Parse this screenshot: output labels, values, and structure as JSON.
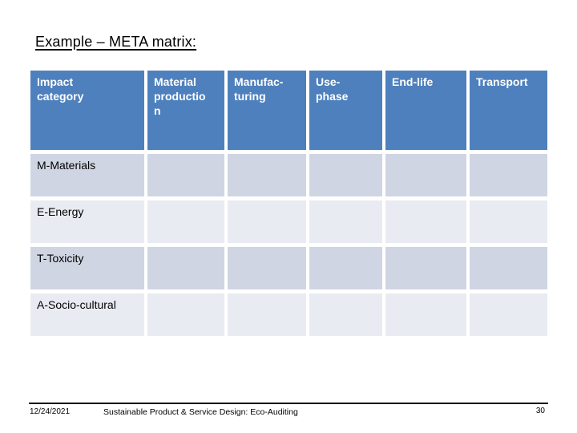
{
  "slide": {
    "title": "Example – META matrix:",
    "footer": {
      "date": "12/24/2021",
      "course": "Sustainable Product & Service Design: Eco-Auditing",
      "page_number": "30"
    }
  },
  "table": {
    "headers": [
      "Impact\ncategory",
      "Material\nproductio\nn",
      "Manufac-\nturing",
      "Use-\nphase",
      "End-life",
      "Transport"
    ],
    "rows": [
      {
        "label": "M-Materials"
      },
      {
        "label": "E-Energy"
      },
      {
        "label": "T-Toxicity"
      },
      {
        "label": "A-Socio-cultural"
      }
    ]
  },
  "colors": {
    "header_bg": "#4E80BD",
    "header_text": "#FFFFFF",
    "band_dark": "#CFD5E2",
    "band_light": "#E9EBF2"
  }
}
